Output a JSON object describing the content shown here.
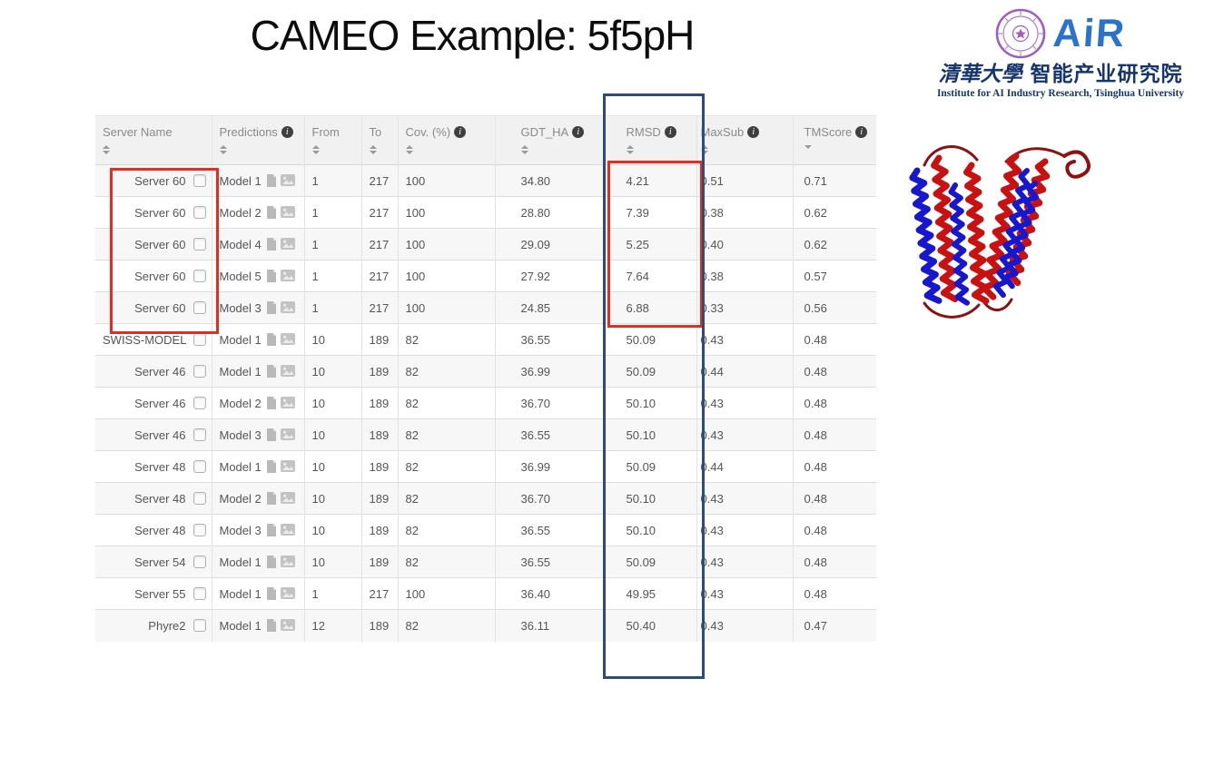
{
  "slide": {
    "title": "CAMEO Example: 5f5pH"
  },
  "logo": {
    "wordmark": "AiR",
    "university_cn": "清華大學",
    "institute_cn": "智能产业研究院",
    "subtitle_en": "Institute for AI Industry Research,  Tsinghua University",
    "seal_color": "#a05cc5",
    "brand_blue": "#2a72cc",
    "dark_blue": "#16356e"
  },
  "table": {
    "columns": [
      {
        "label": "Server Name",
        "info": false,
        "sort": "both"
      },
      {
        "label": "Predictions",
        "info": true,
        "sort": "both"
      },
      {
        "label": "From",
        "info": false,
        "sort": "both"
      },
      {
        "label": "To",
        "info": false,
        "sort": "both"
      },
      {
        "label": "Cov. (%)",
        "info": true,
        "sort": "both"
      },
      {
        "label": "GDT_HA",
        "info": true,
        "sort": "both"
      },
      {
        "label": "RMSD",
        "info": true,
        "sort": "both"
      },
      {
        "label": "MaxSub",
        "info": true,
        "sort": "both"
      },
      {
        "label": "TMScore",
        "info": true,
        "sort": "desc"
      }
    ],
    "rows": [
      {
        "server": "Server 60",
        "model": "Model 1",
        "from": "1",
        "to": "217",
        "cov": "100",
        "gdt_ha": "34.80",
        "rmsd": "4.21",
        "maxsub": "0.51",
        "tmscore": "0.71"
      },
      {
        "server": "Server 60",
        "model": "Model 2",
        "from": "1",
        "to": "217",
        "cov": "100",
        "gdt_ha": "28.80",
        "rmsd": "7.39",
        "maxsub": "0.38",
        "tmscore": "0.62"
      },
      {
        "server": "Server 60",
        "model": "Model 4",
        "from": "1",
        "to": "217",
        "cov": "100",
        "gdt_ha": "29.09",
        "rmsd": "5.25",
        "maxsub": "0.40",
        "tmscore": "0.62"
      },
      {
        "server": "Server 60",
        "model": "Model 5",
        "from": "1",
        "to": "217",
        "cov": "100",
        "gdt_ha": "27.92",
        "rmsd": "7.64",
        "maxsub": "0.38",
        "tmscore": "0.57"
      },
      {
        "server": "Server 60",
        "model": "Model 3",
        "from": "1",
        "to": "217",
        "cov": "100",
        "gdt_ha": "24.85",
        "rmsd": "6.88",
        "maxsub": "0.33",
        "tmscore": "0.56"
      },
      {
        "server": "SWISS-MODEL",
        "model": "Model 1",
        "from": "10",
        "to": "189",
        "cov": "82",
        "gdt_ha": "36.55",
        "rmsd": "50.09",
        "maxsub": "0.43",
        "tmscore": "0.48"
      },
      {
        "server": "Server 46",
        "model": "Model 1",
        "from": "10",
        "to": "189",
        "cov": "82",
        "gdt_ha": "36.99",
        "rmsd": "50.09",
        "maxsub": "0.44",
        "tmscore": "0.48"
      },
      {
        "server": "Server 46",
        "model": "Model 2",
        "from": "10",
        "to": "189",
        "cov": "82",
        "gdt_ha": "36.70",
        "rmsd": "50.10",
        "maxsub": "0.43",
        "tmscore": "0.48"
      },
      {
        "server": "Server 46",
        "model": "Model 3",
        "from": "10",
        "to": "189",
        "cov": "82",
        "gdt_ha": "36.55",
        "rmsd": "50.10",
        "maxsub": "0.43",
        "tmscore": "0.48"
      },
      {
        "server": "Server 48",
        "model": "Model 1",
        "from": "10",
        "to": "189",
        "cov": "82",
        "gdt_ha": "36.99",
        "rmsd": "50.09",
        "maxsub": "0.44",
        "tmscore": "0.48"
      },
      {
        "server": "Server 48",
        "model": "Model 2",
        "from": "10",
        "to": "189",
        "cov": "82",
        "gdt_ha": "36.70",
        "rmsd": "50.10",
        "maxsub": "0.43",
        "tmscore": "0.48"
      },
      {
        "server": "Server 48",
        "model": "Model 3",
        "from": "10",
        "to": "189",
        "cov": "82",
        "gdt_ha": "36.55",
        "rmsd": "50.10",
        "maxsub": "0.43",
        "tmscore": "0.48"
      },
      {
        "server": "Server 54",
        "model": "Model 1",
        "from": "10",
        "to": "189",
        "cov": "82",
        "gdt_ha": "36.55",
        "rmsd": "50.09",
        "maxsub": "0.43",
        "tmscore": "0.48"
      },
      {
        "server": "Server 55",
        "model": "Model 1",
        "from": "1",
        "to": "217",
        "cov": "100",
        "gdt_ha": "36.40",
        "rmsd": "49.95",
        "maxsub": "0.43",
        "tmscore": "0.48"
      },
      {
        "server": "Phyre2",
        "model": "Model 1",
        "from": "12",
        "to": "189",
        "cov": "82",
        "gdt_ha": "36.11",
        "rmsd": "50.40",
        "maxsub": "0.43",
        "tmscore": "0.47"
      }
    ]
  },
  "annotations": {
    "red_box_color": "#e82a1f",
    "blue_box_color": "#2d4c79"
  },
  "protein": {
    "description": "superposed predicted vs native protein structure, red and blue alpha helices",
    "red": "#c91111",
    "blue": "#1717cf",
    "loop_red": "#8e1010"
  }
}
